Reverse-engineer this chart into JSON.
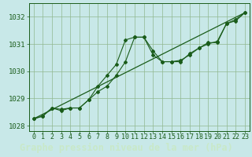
{
  "title": "Graphe pression niveau de la mer (hPa)",
  "bg_color": "#c8e8e8",
  "plot_bg_color": "#c8e8e8",
  "line_color": "#1a5c1a",
  "marker_color": "#1a5c1a",
  "grid_color": "#90b890",
  "footer_bg": "#2a6b2a",
  "footer_fg": "#c8e8c8",
  "xlim": [
    -0.5,
    23.5
  ],
  "ylim": [
    1027.8,
    1032.5
  ],
  "yticks": [
    1028,
    1029,
    1030,
    1031,
    1032
  ],
  "xticks": [
    0,
    1,
    2,
    3,
    4,
    5,
    6,
    7,
    8,
    9,
    10,
    11,
    12,
    13,
    14,
    15,
    16,
    17,
    18,
    19,
    20,
    21,
    22,
    23
  ],
  "series1_x": [
    0,
    1,
    2,
    3,
    4,
    5,
    6,
    7,
    8,
    9,
    10,
    11,
    12,
    13,
    14,
    15,
    16,
    17,
    18,
    19,
    20,
    21,
    22,
    23
  ],
  "series1_y": [
    1028.25,
    1028.35,
    1028.65,
    1028.55,
    1028.65,
    1028.65,
    1028.95,
    1029.45,
    1029.85,
    1030.25,
    1031.15,
    1031.25,
    1031.25,
    1030.75,
    1030.35,
    1030.35,
    1030.35,
    1030.65,
    1030.85,
    1031.05,
    1031.05,
    1031.75,
    1031.85,
    1032.15
  ],
  "series2_x": [
    0,
    1,
    2,
    3,
    4,
    5,
    6,
    7,
    8,
    9,
    10,
    11,
    12,
    13,
    14,
    15,
    16,
    17,
    18,
    19,
    20,
    21,
    22,
    23
  ],
  "series2_y": [
    1028.25,
    1028.35,
    1028.65,
    1028.6,
    1028.65,
    1028.65,
    1028.95,
    1029.25,
    1029.45,
    1029.85,
    1030.35,
    1031.25,
    1031.25,
    1030.6,
    1030.35,
    1030.35,
    1030.4,
    1030.6,
    1030.85,
    1031.0,
    1031.1,
    1031.75,
    1031.9,
    1032.15
  ],
  "series3_x": [
    0,
    23
  ],
  "series3_y": [
    1028.25,
    1032.15
  ],
  "title_fontsize": 8.5,
  "tick_fontsize": 6.0,
  "ytick_fontsize": 6.5
}
